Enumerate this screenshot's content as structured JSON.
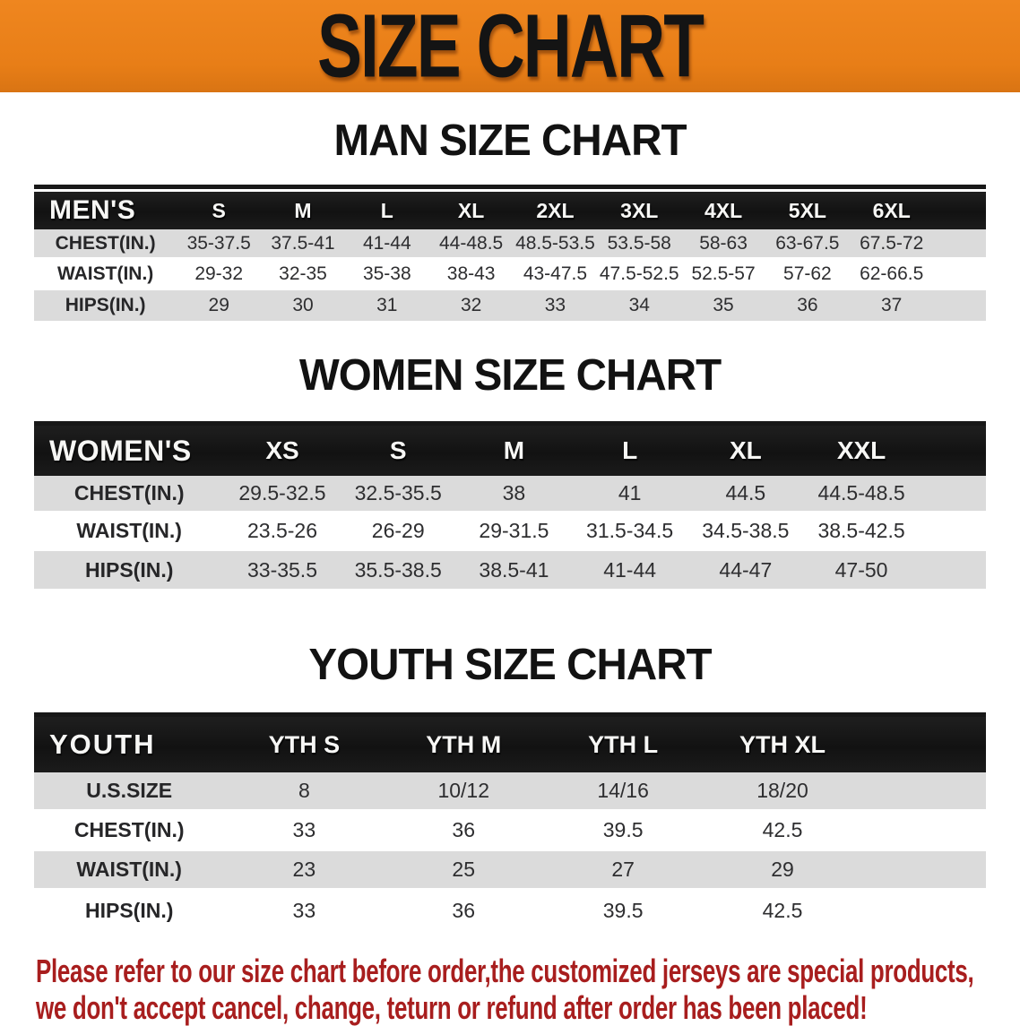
{
  "banner": {
    "title": "SIZE CHART",
    "bg_color": "#e87e17",
    "text_color": "#141414"
  },
  "sections": {
    "men": {
      "heading": "MAN SIZE CHART",
      "corner_label": "MEN'S",
      "sizes": [
        "S",
        "M",
        "L",
        "XL",
        "2XL",
        "3XL",
        "4XL",
        "5XL",
        "6XL"
      ],
      "rows": [
        {
          "label": "CHEST(IN.)",
          "values": [
            "35-37.5",
            "37.5-41",
            "41-44",
            "44-48.5",
            "48.5-53.5",
            "53.5-58",
            "58-63",
            "63-67.5",
            "67.5-72"
          ]
        },
        {
          "label": "WAIST(IN.)",
          "values": [
            "29-32",
            "32-35",
            "35-38",
            "38-43",
            "43-47.5",
            "47.5-52.5",
            "52.5-57",
            "57-62",
            "62-66.5"
          ]
        },
        {
          "label": "HIPS(IN.)",
          "values": [
            "29",
            "30",
            "31",
            "32",
            "33",
            "34",
            "35",
            "36",
            "37"
          ]
        }
      ]
    },
    "women": {
      "heading": "WOMEN SIZE CHART",
      "corner_label": "WOMEN'S",
      "sizes": [
        "XS",
        "S",
        "M",
        "L",
        "XL",
        "XXL"
      ],
      "rows": [
        {
          "label": "CHEST(IN.)",
          "values": [
            "29.5-32.5",
            "32.5-35.5",
            "38",
            "41",
            "44.5",
            "44.5-48.5"
          ]
        },
        {
          "label": "WAIST(IN.)",
          "values": [
            "23.5-26",
            "26-29",
            "29-31.5",
            "31.5-34.5",
            "34.5-38.5",
            "38.5-42.5"
          ]
        },
        {
          "label": "HIPS(IN.)",
          "values": [
            "33-35.5",
            "35.5-38.5",
            "38.5-41",
            "41-44",
            "44-47",
            "47-50"
          ]
        }
      ]
    },
    "youth": {
      "heading": "YOUTH SIZE CHART",
      "corner_label": "YOUTH",
      "sizes": [
        "YTH S",
        "YTH M",
        "YTH L",
        "YTH XL"
      ],
      "rows": [
        {
          "label": "U.S.SIZE",
          "values": [
            "8",
            "10/12",
            "14/16",
            "18/20"
          ]
        },
        {
          "label": "CHEST(IN.)",
          "values": [
            "33",
            "36",
            "39.5",
            "42.5"
          ]
        },
        {
          "label": "WAIST(IN.)",
          "values": [
            "23",
            "25",
            "27",
            "29"
          ]
        },
        {
          "label": "HIPS(IN.)",
          "values": [
            "33",
            "36",
            "39.5",
            "42.5"
          ]
        }
      ]
    }
  },
  "footer": {
    "text_color": "#a81e1e",
    "lines": [
      "Please refer to our size chart before order,the customized jerseys are special products,",
      "we don't accept cancel, change, teturn or refund after order has been placed!"
    ]
  },
  "colors": {
    "banner_orange": "#e87e17",
    "header_bar_black": "#161616",
    "row_gray": "#dbdbdb",
    "row_white": "#ffffff",
    "heading_black": "#121212",
    "footer_red": "#a81e1e"
  }
}
